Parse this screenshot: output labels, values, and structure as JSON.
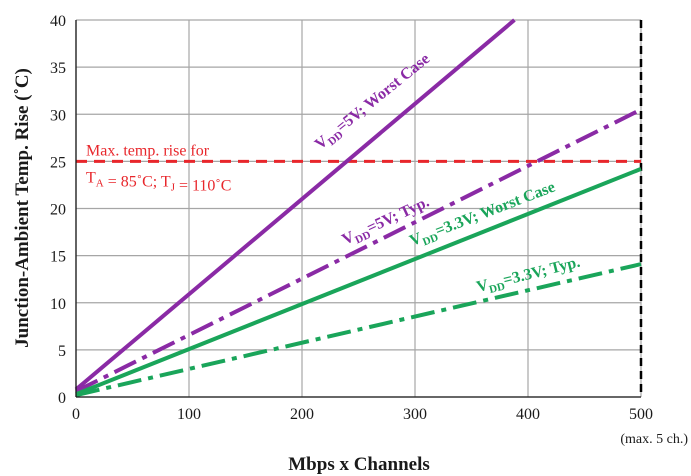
{
  "chart_data": {
    "type": "line",
    "title": "",
    "xlabel": "Mbps x Channels",
    "ylabel": "Junction-Ambient Temp. Rise (˚C)",
    "xlim": [
      0,
      500
    ],
    "ylim": [
      0,
      40
    ],
    "x_ticks": [
      0,
      100,
      200,
      300,
      400,
      500
    ],
    "y_ticks": [
      0,
      5,
      10,
      15,
      20,
      25,
      30,
      35,
      40
    ],
    "grid": true,
    "x_note": "(max. 5 ch.)",
    "series": [
      {
        "name": "VDD=5V; Worst Case",
        "label_main": "V",
        "label_sub": "DD",
        "label_rest": "=5V; Worst Case",
        "color": "#8a2aa5",
        "style": "solid",
        "x": [
          0,
          388
        ],
        "y": [
          0.8,
          40
        ]
      },
      {
        "name": "VDD=5V; Typ.",
        "label_main": "V",
        "label_sub": "DD",
        "label_rest": "=5V; Typ.",
        "color": "#8a2aa5",
        "style": "dashdot",
        "x": [
          0,
          500
        ],
        "y": [
          0.6,
          30.5
        ]
      },
      {
        "name": "VDD=3.3V; Worst Case",
        "label_main": "V",
        "label_sub": "DD",
        "label_rest": "=3.3V; Worst Case",
        "color": "#1aa55a",
        "style": "solid",
        "x": [
          0,
          500
        ],
        "y": [
          0.3,
          24.2
        ]
      },
      {
        "name": "VDD=3.3V; Typ.",
        "label_main": "V",
        "label_sub": "DD",
        "label_rest": "=3.3V; Typ.",
        "color": "#1aa55a",
        "style": "dashdot",
        "x": [
          0,
          500
        ],
        "y": [
          0.2,
          14.1
        ]
      }
    ],
    "limit_line": {
      "y": 25,
      "color": "#e8262b",
      "line1": "Max. temp. rise for",
      "line2_a": "T",
      "line2_a_sub": "A",
      "line2_b": " = 85˚C; T",
      "line2_b_sub": "J",
      "line2_c": " = 110˚C"
    },
    "max_line": {
      "x": 500,
      "color": "#000000"
    }
  }
}
